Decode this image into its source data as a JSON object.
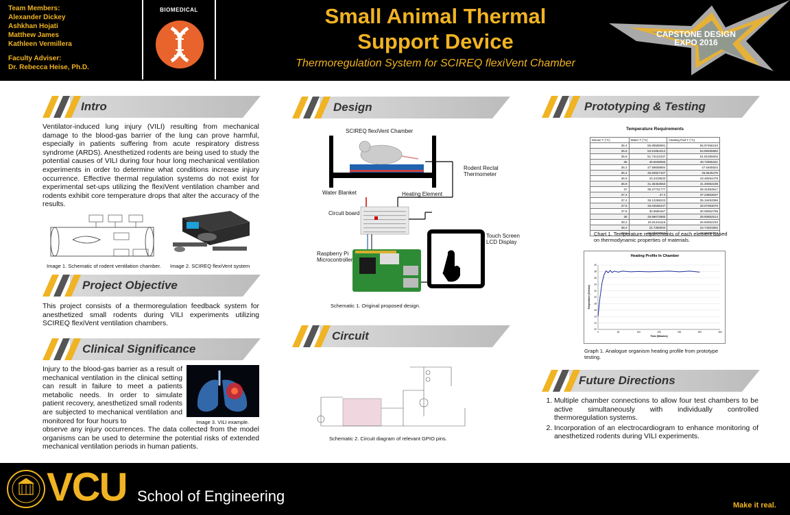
{
  "header": {
    "team_heading": "Team Members:",
    "members": [
      "Alexander Dickey",
      "Ashkhan Hojati",
      "Matthew James",
      "Kathleen Vermillera"
    ],
    "adviser_heading": "Faculty Adviser:",
    "adviser": "Dr. Rebecca Heise, Ph.D.",
    "badge_label": "BIOMEDICAL",
    "title_line1": "Small Animal Thermal",
    "title_line2": "Support Device",
    "subtitle": "Thermoregulation System for SCIREQ flexiVent Chamber",
    "expo_line1": "CAPSTONE DESIGN",
    "expo_line2": "EXPO 2016"
  },
  "sections": {
    "intro": {
      "title": "Intro",
      "text": "Ventilator-induced lung injury (VILI) resulting from mechanical damage to the blood-gas barrier of the lung can prove harmful, especially in patients suffering from acute respiratory distress syndrome (ARDS). Anesthetized rodents are being used to study the potential causes of VILI during four hour long mechanical ventilation experiments in order to determine what conditions increase injury occurrence. Effective thermal regulation systems do not exist for experimental set-ups utilizing the flexiVent ventilation chamber and rodents exhibit core temperature drops that alter the accuracy of the results.",
      "image1_caption": "Image 1. Schematic of rodent ventilation chamber.",
      "image2_caption": "Image 2. SCIREQ flexiVent system"
    },
    "objective": {
      "title": "Project Objective",
      "text": "This project consists of a thermoregulation feedback system for anesthetized small rodents during VILI experiments utilizing SCIREQ flexiVent ventilation chambers."
    },
    "clinical": {
      "title": "Clinical Significance",
      "text_top": "Injury to the blood-gas barrier as a result of mechanical ventilation in the clinical setting can result in failure to meet a patients metabolic needs. In order to simulate patient recovery, anesthetized small rodents are subjected to mechanical ventilation and monitored for four hours to",
      "text_bottom": "observe any injury occurrences. The data collected from the model organisms can be used to determine the potential risks of extended mechanical ventilation periods in human patients.",
      "image3_caption": "Image 3. VILI example."
    },
    "design": {
      "title": "Design",
      "chamber_label": "SCIREQ flexiVent Chamber",
      "rectal_label_1": "Rodent Rectal",
      "rectal_label_2": "Thermometer",
      "water_blanket": "Water Blanket",
      "heating_element": "Heating Element",
      "circuit_board": "Circuit board",
      "touch_1": "Touch Screen",
      "touch_2": "LCD Display",
      "rpi_1": "Raspberry Pi",
      "rpi_2": "Microcontroller",
      "caption": "Schematic 1. Original proposed design."
    },
    "circuit": {
      "title": "Circuit",
      "caption": "Schematic 2. Circuit diagram of relevant GPIO pins."
    },
    "prototyping": {
      "title": "Prototyping & Testing",
      "table_title": "Temperature Requirements",
      "table_headers": [
        "Mouse T (°C)",
        "Water T (°C)",
        "Heating Pad T (°C)"
      ],
      "table_rows": [
        [
          "35.4",
          "55.89585991",
          "55.97456163"
        ],
        [
          "35.6",
          "53.81854214",
          "53.89255882"
        ],
        [
          "35.8",
          "51.74122437",
          "51.81055602"
        ],
        [
          "36",
          "49.6639066",
          "49.72855321"
        ],
        [
          "36.2",
          "47.58658884",
          "47.6465504"
        ],
        [
          "36.4",
          "45.50927107",
          "45.5645476"
        ],
        [
          "36.6",
          "43.4319533",
          "43.48254479"
        ],
        [
          "36.8",
          "41.35463553",
          "41.40054198"
        ],
        [
          "37",
          "39.27731777",
          "39.31853917"
        ],
        [
          "37.2",
          "37.2",
          "37.23653637"
        ],
        [
          "37.4",
          "35.12268223",
          "35.15453356"
        ],
        [
          "37.6",
          "33.04536447",
          "33.07253075"
        ],
        [
          "37.8",
          "30.9680467",
          "30.99052795"
        ],
        [
          "38",
          "28.89072893",
          "28.90852514"
        ],
        [
          "38.2",
          "26.81341116",
          "26.82652233"
        ],
        [
          "38.4",
          "24.7360934",
          "24.74451952"
        ],
        [
          "38.6",
          "22.65877563",
          "22.66251672"
        ]
      ],
      "chart1_caption": "Chart 1. Temperature requirements of each element based on thermodynamic properties of materials.",
      "graph_caption": "Graph 1. Analogue organism heating profile from prototype testing."
    },
    "future": {
      "title": "Future Directions",
      "items": [
        "Multiple chamber connections to allow four test chambers to be active simultaneously with individually controlled thermoregulation systems.",
        "Incorporation of an electrocardiogram to enhance monitoring of anesthetized rodents during VILI experiments."
      ]
    }
  },
  "chart_data": {
    "type": "line",
    "title": "Heating Profile In Chamber",
    "xlabel": "Time (Minutes)",
    "ylabel": "Temperature (Celsius)",
    "x_ticks": [
      "0",
      "50",
      "100",
      "150",
      "200",
      "250",
      "300"
    ],
    "y_ticks": [
      "20",
      "22",
      "24",
      "26",
      "28",
      "30",
      "32",
      "34",
      "36",
      "38",
      "40"
    ],
    "xlim": [
      0,
      300
    ],
    "ylim": [
      20,
      40
    ],
    "grid": true,
    "series": [
      {
        "x": [
          0,
          5,
          10,
          15,
          20,
          25,
          30,
          35,
          40,
          50,
          60,
          80,
          100,
          125,
          150,
          175,
          200,
          225,
          250
        ],
        "y": [
          24,
          30,
          34.5,
          37,
          38.2,
          37.6,
          38.3,
          37.7,
          38.1,
          37.8,
          38.1,
          37.9,
          38.0,
          37.9,
          38.0,
          38.1,
          37.9,
          38.1,
          37.8
        ]
      }
    ]
  },
  "footer": {
    "brand": "VCU",
    "school": "School of Engineering",
    "tagline": "Make it real."
  },
  "colors": {
    "gold": "#f0b323",
    "black": "#000000",
    "banner_gray": "#cfcfcf",
    "biomed_orange": "#e8642c",
    "chart_line": "#1f2f9e"
  }
}
